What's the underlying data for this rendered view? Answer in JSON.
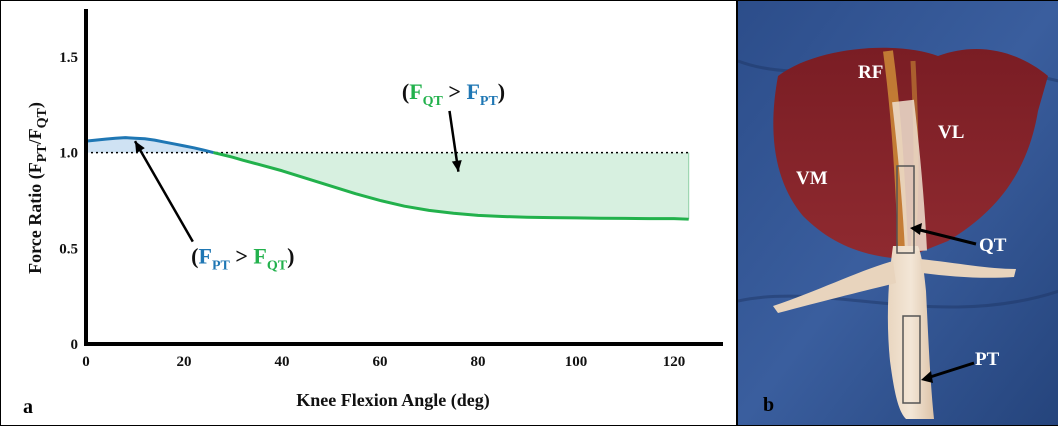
{
  "colors": {
    "pt_blue": "#1f77b4",
    "qt_green": "#22b14c",
    "fill_blue": "#cfe2f3",
    "fill_green": "#d7f0e0"
  },
  "chart_data": {
    "type": "line",
    "title": "",
    "xlabel": "Knee Flexion Angle (deg)",
    "ylabel": "Force Ratio (F_PT/F_QT)",
    "ylabel_parts": {
      "main": "Force Ratio (F",
      "sub1": "PT",
      "sep": "/F",
      "sub2": "QT",
      "end": ")"
    },
    "xlim": [
      0,
      130
    ],
    "ylim": [
      0,
      1.75
    ],
    "xticks": [
      0,
      20,
      40,
      60,
      80,
      100,
      120
    ],
    "yticks": [
      0,
      0.5,
      1.0,
      1.5
    ],
    "ytick_labels": [
      "0",
      "0.5",
      "1.0",
      "1.5"
    ],
    "reference_line": {
      "y": 1.0,
      "style": "dotted"
    },
    "series": [
      {
        "color": "#1f77b4",
        "x": [
          0,
          2,
          4,
          6,
          8,
          10,
          12,
          14,
          16,
          18,
          20,
          22,
          24,
          26
        ],
        "y": [
          1.06,
          1.065,
          1.07,
          1.075,
          1.078,
          1.075,
          1.072,
          1.065,
          1.055,
          1.045,
          1.035,
          1.025,
          1.013,
          1.0
        ]
      },
      {
        "color": "#22b14c",
        "x": [
          26,
          28,
          30,
          32,
          35,
          40,
          45,
          50,
          55,
          60,
          65,
          70,
          75,
          80,
          85,
          90,
          95,
          100,
          105,
          110,
          115,
          120,
          123
        ],
        "y": [
          1.0,
          0.988,
          0.975,
          0.96,
          0.94,
          0.905,
          0.865,
          0.825,
          0.785,
          0.75,
          0.72,
          0.698,
          0.683,
          0.672,
          0.666,
          0.662,
          0.66,
          0.659,
          0.657,
          0.656,
          0.655,
          0.655,
          0.652
        ]
      }
    ],
    "annotations": [
      {
        "id": "qt-greater",
        "parts": [
          "(",
          "F",
          "QT",
          " > ",
          "F",
          "PT",
          ")"
        ],
        "x": 75,
        "y": 1.28,
        "arrow_to": [
          76,
          0.9
        ]
      },
      {
        "id": "pt-greater",
        "parts": [
          "(",
          "F",
          "PT",
          " > ",
          "F",
          "QT",
          ")"
        ],
        "x": 32,
        "y": 0.42,
        "arrow_to": [
          10,
          1.06
        ]
      }
    ]
  },
  "panel_a": {
    "label": "a"
  },
  "panel_b": {
    "label": "b",
    "muscle_labels": {
      "rf": "RF",
      "vl": "VL",
      "vm": "VM"
    },
    "tendon_labels": {
      "qt": "QT",
      "pt": "PT"
    }
  }
}
